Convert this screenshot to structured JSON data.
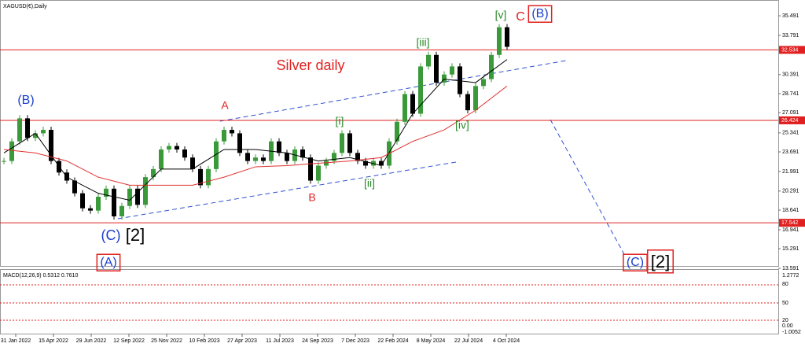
{
  "chart_data": {
    "type": "candlestick",
    "title": "XAGUSD(€),Daily",
    "up_color": "#3a9a3a",
    "down_color": "#000000",
    "ylim": [
      13.8,
      36.86
    ],
    "yticks": [
      {
        "value": 35.491,
        "label": "35.491"
      },
      {
        "value": 33.791,
        "label": "33.791"
      },
      {
        "value": 30.391,
        "label": "30.391"
      },
      {
        "value": 28.741,
        "label": "28.741"
      },
      {
        "value": 27.091,
        "label": "27.091"
      },
      {
        "value": 25.341,
        "label": "25.341"
      },
      {
        "value": 23.691,
        "label": "23.691"
      },
      {
        "value": 21.991,
        "label": "21.991"
      },
      {
        "value": 20.291,
        "label": "20.291"
      },
      {
        "value": 18.641,
        "label": "18.641"
      },
      {
        "value": 16.941,
        "label": "16.941"
      },
      {
        "value": 15.291,
        "label": "15.291"
      },
      {
        "value": 13.591,
        "label": "13.591"
      }
    ],
    "levels": [
      {
        "value": 32.534,
        "label": "32.534"
      },
      {
        "value": 26.424,
        "label": "26.424"
      },
      {
        "value": 17.542,
        "label": "17.542"
      }
    ],
    "level_color": "#e02020",
    "xlabels": [
      "31 Jan 2022",
      "15 Apr 2022",
      "29 Jun 2022",
      "12 Sep 2022",
      "25 Nov 2022",
      "10 Feb 2023",
      "27 Apr 2023",
      "11 Jul 2023",
      "24 Sep 2023",
      "7 Dec 2023",
      "22 Feb 2024",
      "8 May 2024",
      "22 Jul 2024",
      "4 Oct 2024"
    ],
    "values": [
      22.9,
      24.6,
      26.6,
      24.9,
      25.3,
      25.6,
      22.9,
      21.9,
      21.2,
      20.1,
      18.8,
      18.6,
      19.8,
      20.5,
      18.1,
      19.0,
      20.5,
      19.1,
      21.5,
      22.2,
      23.9,
      24.2,
      23.9,
      23.2,
      22.2,
      20.8,
      22.2,
      24.6,
      25.6,
      25.3,
      23.6,
      22.9,
      23.2,
      22.9,
      24.6,
      23.6,
      22.9,
      23.9,
      23.2,
      21.2,
      22.5,
      22.9,
      23.6,
      25.3,
      23.6,
      22.9,
      22.5,
      22.9,
      22.5,
      24.6,
      26.3,
      28.7,
      27.0,
      31.1,
      32.1,
      29.7,
      30.4,
      31.1,
      28.7,
      27.3,
      29.4,
      30.0,
      32.1,
      34.5,
      32.8
    ],
    "moving_averages": [
      {
        "color": "#000000",
        "values": [
          23.6,
          25.3,
          21.5,
          20.1,
          19.5,
          22.2,
          22.2,
          23.9,
          23.9,
          23.6,
          22.9,
          23.2,
          22.5,
          27.0,
          30.0,
          29.7,
          31.7
        ]
      },
      {
        "color": "#e03030",
        "values": [
          23.9,
          23.6,
          22.9,
          21.5,
          20.8,
          20.8,
          20.8,
          21.5,
          22.4,
          22.5,
          22.7,
          22.9,
          23.2,
          24.6,
          25.6,
          27.3,
          29.4
        ]
      }
    ],
    "annotations": [
      {
        "text": "(B)",
        "color": "#1a3fd0"
      },
      {
        "text": "A",
        "color": "#e02020"
      },
      {
        "text": "[i]",
        "color": "#2a8a2a"
      },
      {
        "text": "[iii]",
        "color": "#2a8a2a"
      },
      {
        "text": "[v]",
        "color": "#2a8a2a"
      },
      {
        "text": "C",
        "color": "#e02020"
      },
      {
        "text": "(B)",
        "color": "#1a3fd0",
        "box": true
      },
      {
        "text": "Silver daily",
        "color": "#e02020"
      },
      {
        "text": "B",
        "color": "#e02020"
      },
      {
        "text": "[ii]",
        "color": "#2a8a2a"
      },
      {
        "text": "[iv]",
        "color": "#2a8a2a"
      },
      {
        "text": "(C)",
        "color": "#1a3fd0"
      },
      {
        "text": "[2]",
        "color": "#000000"
      },
      {
        "text": "(A)",
        "color": "#1a3fd0",
        "box": true
      },
      {
        "text": "(C)",
        "color": "#1a3fd0",
        "box": true
      },
      {
        "text": "[2]",
        "color": "#000000",
        "box": true
      }
    ],
    "macd_title": "MACD(12,26,9) 0.5312 0.7610",
    "macd_axis_labels": [
      "1.2772",
      "80",
      "50",
      "20",
      "0.00",
      "-1.0052"
    ]
  }
}
